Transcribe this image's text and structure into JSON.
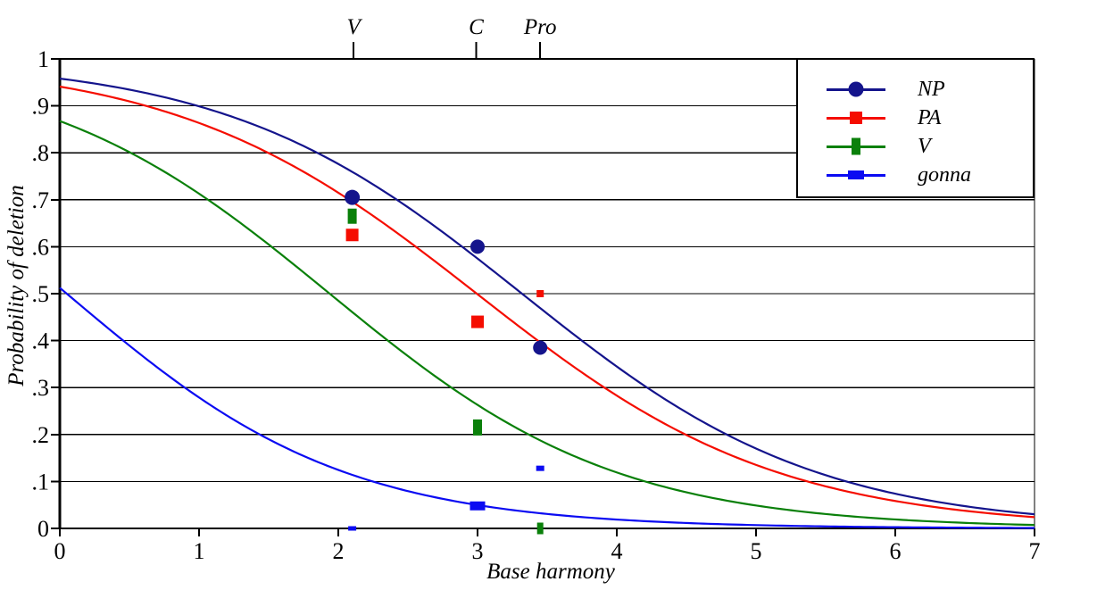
{
  "chart_data": {
    "type": "line",
    "title": "",
    "xlabel": "Base harmony",
    "ylabel": "Probability of deletion",
    "xlim": [
      0,
      7
    ],
    "ylim": [
      0,
      1
    ],
    "grid": "horizontal",
    "background": "#FFFFFF",
    "axis_color": "#000000",
    "x_tick_values": [
      0,
      1,
      2,
      3,
      4,
      5,
      6,
      7
    ],
    "x_tick_labels": [
      "0",
      "1",
      "2",
      "3",
      "4",
      "5",
      "6",
      "7"
    ],
    "y_tick_values": [
      0,
      0.1,
      0.2,
      0.3,
      0.4,
      0.5,
      0.6,
      0.7,
      0.8,
      0.9,
      1
    ],
    "y_tick_labels": [
      "0",
      ".1",
      ".2",
      ".3",
      ".4",
      ".5",
      ".6",
      ".7",
      ".8",
      ".9",
      "1"
    ],
    "top_axis_annotations": [
      {
        "label": "V",
        "x": 2.11
      },
      {
        "label": "C",
        "x": 2.99
      },
      {
        "label": "Pro",
        "x": 3.45
      }
    ],
    "legend": {
      "position": "top-right",
      "items": [
        "NP",
        "PA",
        "V",
        "gonna"
      ]
    },
    "series": [
      {
        "name": "NP",
        "color": "#14148C",
        "marker": "circle",
        "curve_logistic": {
          "a": 3.13,
          "b": 0.943
        },
        "points": [
          {
            "x": 2.1,
            "y": 0.705,
            "w": 17,
            "h": 17
          },
          {
            "x": 3.0,
            "y": 0.6,
            "w": 16,
            "h": 16
          },
          {
            "x": 3.45,
            "y": 0.385,
            "w": 16,
            "h": 16
          }
        ]
      },
      {
        "name": "PA",
        "color": "#F50D00",
        "marker": "square",
        "curve_logistic": {
          "a": 2.77,
          "b": 0.925
        },
        "points": [
          {
            "x": 2.1,
            "y": 0.625,
            "w": 14,
            "h": 14
          },
          {
            "x": 3.0,
            "y": 0.44,
            "w": 14,
            "h": 14
          },
          {
            "x": 3.45,
            "y": 0.5,
            "w": 8,
            "h": 8
          }
        ]
      },
      {
        "name": "V",
        "color": "#0A800A",
        "marker": "vertical-rect",
        "curve_logistic": {
          "a": 1.88,
          "b": 0.97
        },
        "points": [
          {
            "x": 2.1,
            "y": 0.665,
            "w": 10,
            "h": 17
          },
          {
            "x": 3.0,
            "y": 0.215,
            "w": 10,
            "h": 18
          },
          {
            "x": 3.45,
            "y": 0.0,
            "w": 7,
            "h": 13
          }
        ]
      },
      {
        "name": "gonna",
        "color": "#0B0BF2",
        "marker": "horizontal-rect",
        "curve_logistic": {
          "a": 0.05,
          "b": 1.0
        },
        "points": [
          {
            "x": 2.1,
            "y": 0.0,
            "w": 9,
            "h": 5
          },
          {
            "x": 3.0,
            "y": 0.048,
            "w": 17,
            "h": 10
          },
          {
            "x": 3.45,
            "y": 0.128,
            "w": 9,
            "h": 6
          }
        ]
      }
    ]
  }
}
